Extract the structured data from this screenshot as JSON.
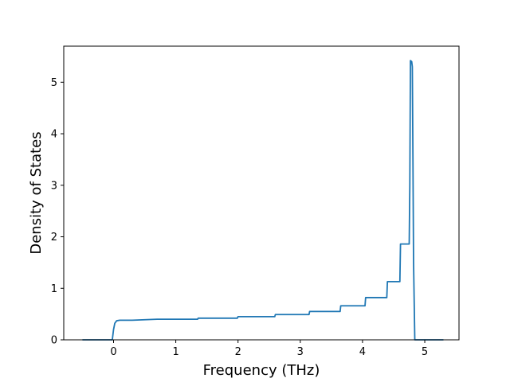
{
  "chart_data": {
    "type": "line",
    "title": "",
    "xlabel": "Frequency (THz)",
    "ylabel": "Density of States",
    "xlim": [
      -0.8,
      5.55
    ],
    "ylim": [
      0,
      5.7
    ],
    "xticks": [
      0,
      1,
      2,
      3,
      4,
      5
    ],
    "xtick_labels": [
      "0",
      "1",
      "2",
      "3",
      "4",
      "5"
    ],
    "yticks": [
      0,
      1,
      2,
      3,
      4,
      5
    ],
    "ytick_labels": [
      "0",
      "1",
      "2",
      "3",
      "4",
      "5"
    ],
    "grid": false,
    "series": [
      {
        "color": "#1f77b4",
        "x": [
          -0.5,
          -0.02,
          0.0,
          0.02,
          0.05,
          0.1,
          0.3,
          0.7,
          1.35,
          1.36,
          1.99,
          2.0,
          2.59,
          2.6,
          3.14,
          3.15,
          3.64,
          3.65,
          4.04,
          4.05,
          4.39,
          4.4,
          4.6,
          4.61,
          4.75,
          4.76,
          4.77,
          4.79,
          4.8,
          4.81,
          4.82,
          4.84,
          4.85,
          5.0,
          5.3
        ],
        "y": [
          0,
          0,
          0.2,
          0.32,
          0.37,
          0.38,
          0.38,
          0.4,
          0.4,
          0.42,
          0.42,
          0.45,
          0.45,
          0.49,
          0.49,
          0.55,
          0.55,
          0.66,
          0.66,
          0.82,
          0.82,
          1.13,
          1.13,
          1.86,
          1.86,
          3.0,
          5.42,
          5.4,
          5.3,
          3.5,
          1.5,
          0,
          0,
          0,
          0
        ]
      }
    ]
  }
}
